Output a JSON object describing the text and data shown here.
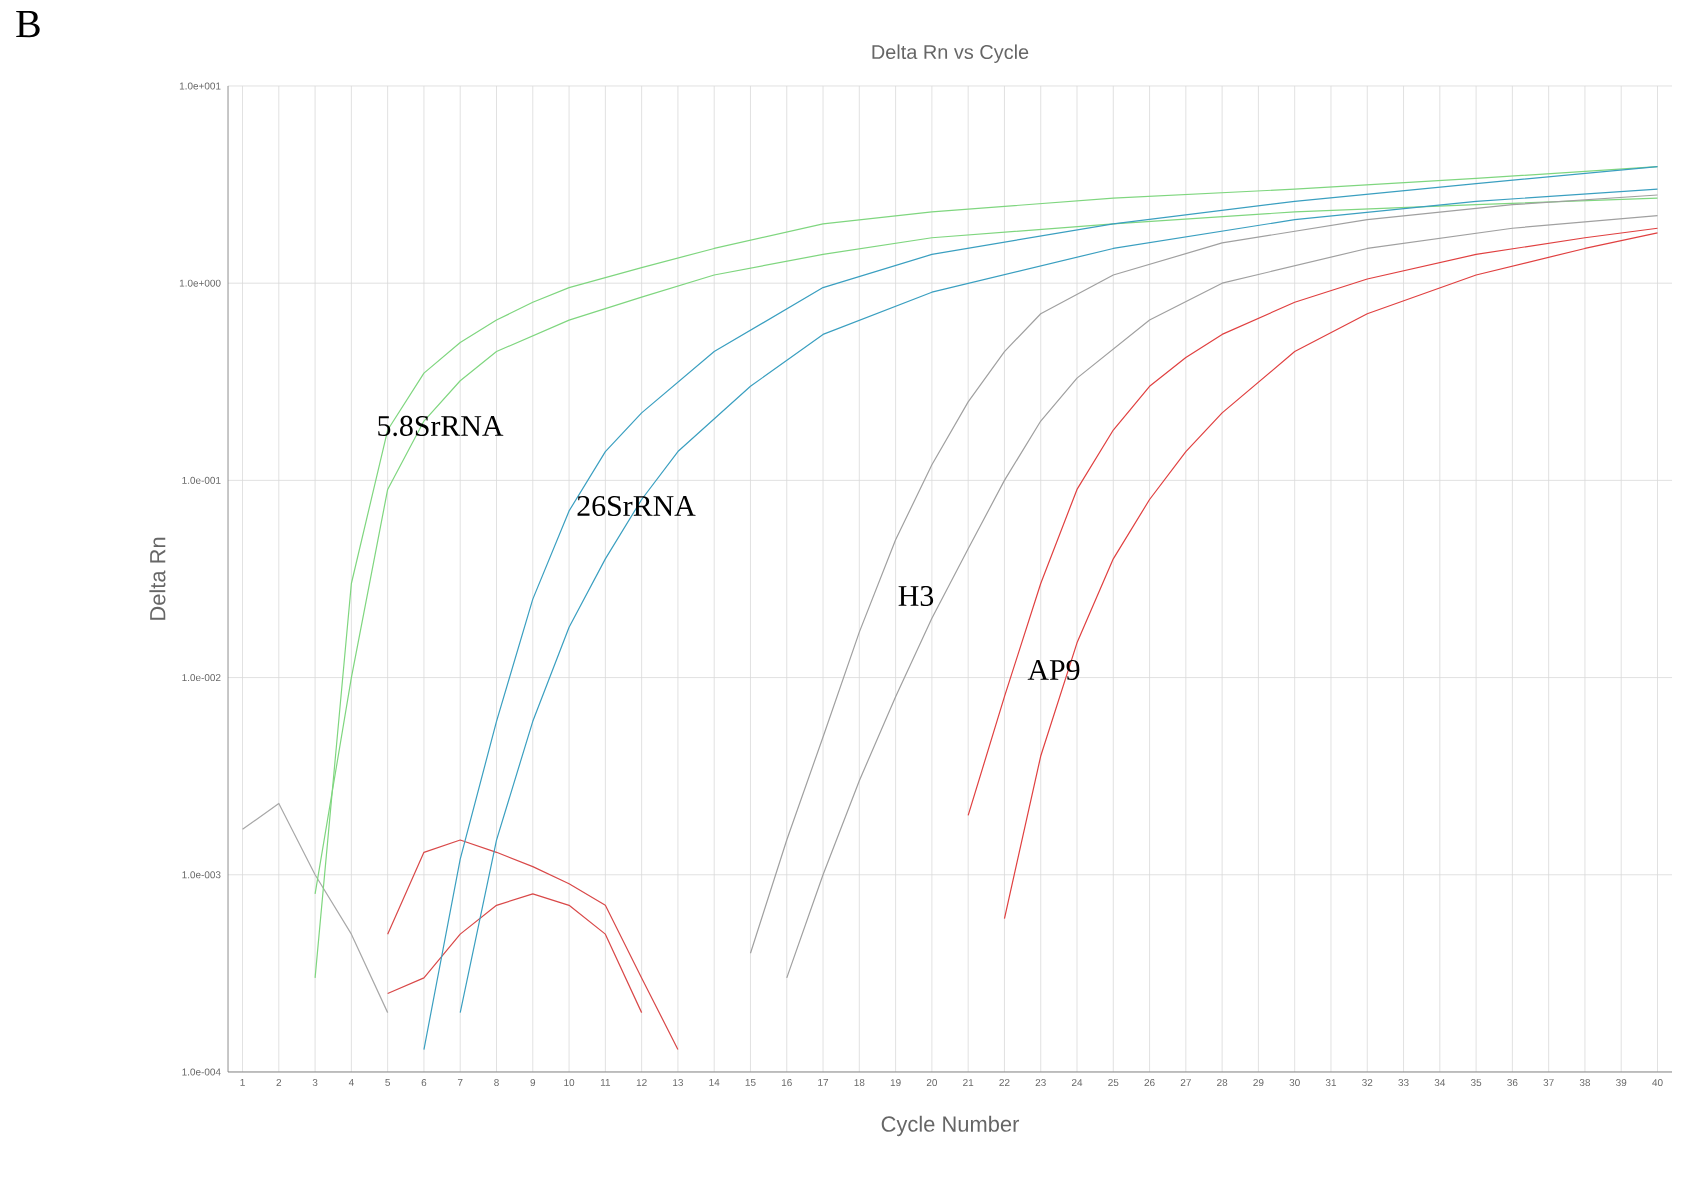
{
  "chart_data": {
    "type": "line",
    "title": "Delta Rn vs Cycle",
    "xlabel": "Cycle Number",
    "ylabel": "Delta Rn",
    "log": "y",
    "grid": true,
    "marker": "none",
    "line_style": "solid",
    "xlim": [
      0.6,
      40.4
    ],
    "ylim": [
      0.0001,
      10
    ],
    "xticks": [
      1,
      2,
      3,
      4,
      5,
      6,
      7,
      8,
      9,
      10,
      11,
      12,
      13,
      14,
      15,
      16,
      17,
      18,
      19,
      20,
      21,
      22,
      23,
      24,
      25,
      26,
      27,
      28,
      29,
      30,
      31,
      32,
      33,
      34,
      35,
      36,
      37,
      38,
      39,
      40
    ],
    "yticks": [
      {
        "value": 0.0001,
        "label": "1.0e-004"
      },
      {
        "value": 0.001,
        "label": "1.0e-003"
      },
      {
        "value": 0.01,
        "label": "1.0e-002"
      },
      {
        "value": 0.1,
        "label": "1.0e-001"
      },
      {
        "value": 1,
        "label": "1.0e+000"
      },
      {
        "value": 10,
        "label": "1.0e+001"
      }
    ],
    "annotations": [
      "B",
      "5.8SrRNA",
      "26SrRNA",
      "H3",
      "AP9"
    ],
    "series": [
      {
        "color": "#a8a8a8",
        "x": [
          1,
          2,
          3,
          4,
          5
        ],
        "values": [
          0.0017,
          0.0023,
          0.001,
          0.0005,
          0.0002
        ]
      },
      {
        "color": "#d94848",
        "x": [
          5,
          6,
          7,
          8,
          9,
          10,
          11,
          12,
          13
        ],
        "values": [
          0.0005,
          0.0013,
          0.0015,
          0.0013,
          0.0011,
          0.0009,
          0.0007,
          0.0003,
          0.00013
        ]
      },
      {
        "color": "#d94848",
        "x": [
          5,
          6,
          7,
          8,
          9,
          10,
          11,
          12
        ],
        "values": [
          0.00025,
          0.0003,
          0.0005,
          0.0007,
          0.0008,
          0.0007,
          0.0005,
          0.0002
        ]
      },
      {
        "color": "#7fd67f",
        "x": [
          3,
          4,
          5,
          6,
          7,
          8,
          9,
          10,
          12,
          14,
          17,
          20,
          25,
          30,
          35,
          40
        ],
        "values": [
          0.0003,
          0.03,
          0.18,
          0.35,
          0.5,
          0.65,
          0.8,
          0.95,
          1.2,
          1.5,
          2.0,
          2.3,
          2.7,
          3.0,
          3.4,
          3.9
        ]
      },
      {
        "color": "#7fd67f",
        "x": [
          3,
          4,
          5,
          6,
          7,
          8,
          10,
          12,
          14,
          17,
          20,
          25,
          30,
          35,
          40
        ],
        "values": [
          0.0008,
          0.01,
          0.09,
          0.2,
          0.32,
          0.45,
          0.65,
          0.85,
          1.1,
          1.4,
          1.7,
          2.0,
          2.3,
          2.5,
          2.7
        ]
      },
      {
        "color": "#3a9fc0",
        "x": [
          6,
          7,
          8,
          9,
          10,
          11,
          12,
          14,
          17,
          20,
          25,
          30,
          35,
          40
        ],
        "values": [
          0.00013,
          0.0012,
          0.006,
          0.025,
          0.07,
          0.14,
          0.22,
          0.45,
          0.95,
          1.4,
          2.0,
          2.6,
          3.2,
          3.9
        ]
      },
      {
        "color": "#3a9fc0",
        "x": [
          7,
          8,
          9,
          10,
          11,
          12,
          13,
          15,
          17,
          20,
          25,
          30,
          35,
          40
        ],
        "values": [
          0.0002,
          0.0015,
          0.006,
          0.018,
          0.04,
          0.08,
          0.14,
          0.3,
          0.55,
          0.9,
          1.5,
          2.1,
          2.6,
          3.0
        ]
      },
      {
        "color": "#a0a0a0",
        "x": [
          15,
          16,
          17,
          18,
          19,
          20,
          21,
          22,
          23,
          25,
          28,
          32,
          36,
          40
        ],
        "values": [
          0.0004,
          0.0015,
          0.005,
          0.017,
          0.05,
          0.12,
          0.25,
          0.45,
          0.7,
          1.1,
          1.6,
          2.1,
          2.5,
          2.8
        ]
      },
      {
        "color": "#a0a0a0",
        "x": [
          16,
          17,
          18,
          19,
          20,
          21,
          22,
          23,
          24,
          26,
          28,
          32,
          36,
          40
        ],
        "values": [
          0.0003,
          0.001,
          0.003,
          0.008,
          0.02,
          0.045,
          0.1,
          0.2,
          0.33,
          0.65,
          1.0,
          1.5,
          1.9,
          2.2
        ]
      },
      {
        "color": "#e04040",
        "x": [
          21,
          22,
          23,
          24,
          25,
          26,
          27,
          28,
          30,
          32,
          35,
          38,
          40
        ],
        "values": [
          0.002,
          0.008,
          0.03,
          0.09,
          0.18,
          0.3,
          0.42,
          0.55,
          0.8,
          1.05,
          1.4,
          1.7,
          1.9
        ]
      },
      {
        "color": "#e04040",
        "x": [
          22,
          23,
          24,
          25,
          26,
          27,
          28,
          30,
          32,
          35,
          38,
          40
        ],
        "values": [
          0.0006,
          0.004,
          0.015,
          0.04,
          0.08,
          0.14,
          0.22,
          0.45,
          0.7,
          1.1,
          1.5,
          1.8
        ]
      }
    ]
  }
}
